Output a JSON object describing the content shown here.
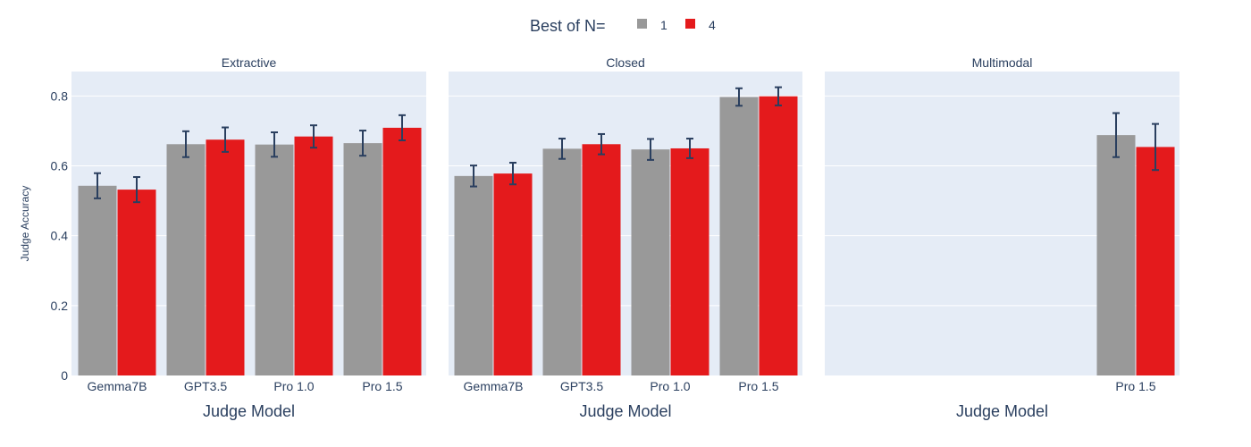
{
  "chart_data": {
    "type": "bar",
    "legend": {
      "title": "Best of N=",
      "placement": "top-center",
      "entries": [
        {
          "label": "1",
          "color": "#999999"
        },
        {
          "label": "4",
          "color": "#e41a1c"
        }
      ]
    },
    "ylabel": "Judge Accuracy",
    "ylim": [
      0,
      0.87
    ],
    "yticks": [
      {
        "value": 0,
        "label": "0"
      },
      {
        "value": 0.2,
        "label": "0.2"
      },
      {
        "value": 0.4,
        "label": "0.4"
      },
      {
        "value": 0.6,
        "label": "0.6"
      },
      {
        "value": 0.8,
        "label": "0.8"
      }
    ],
    "grid": true,
    "panel_background": "#e5ecf6",
    "errorbar_color": "#2a3f5f",
    "panels": [
      {
        "title": "Extractive",
        "xlabel": "Judge Model",
        "categories": [
          "Gemma7B",
          "GPT3.5",
          "Pro 1.0",
          "Pro 1.5"
        ],
        "series": [
          {
            "name": "1",
            "values": [
              0.543,
              0.662,
              0.661,
              0.665
            ],
            "err": [
              0.036,
              0.037,
              0.035,
              0.036
            ]
          },
          {
            "name": "4",
            "values": [
              0.532,
              0.675,
              0.684,
              0.709
            ],
            "err": [
              0.036,
              0.035,
              0.032,
              0.036
            ]
          }
        ]
      },
      {
        "title": "Closed",
        "xlabel": "Judge Model",
        "categories": [
          "Gemma7B",
          "GPT3.5",
          "Pro 1.0",
          "Pro 1.5"
        ],
        "series": [
          {
            "name": "1",
            "values": [
              0.571,
              0.649,
              0.647,
              0.797
            ],
            "err": [
              0.03,
              0.029,
              0.03,
              0.025
            ]
          },
          {
            "name": "4",
            "values": [
              0.578,
              0.662,
              0.65,
              0.799
            ],
            "err": [
              0.031,
              0.029,
              0.028,
              0.026
            ]
          }
        ]
      },
      {
        "title": "Multimodal",
        "xlabel": "Judge Model",
        "categories": [
          "Pro 1.5"
        ],
        "series": [
          {
            "name": "1",
            "values": [
              0.688
            ],
            "err": [
              0.063
            ]
          },
          {
            "name": "4",
            "values": [
              0.654
            ],
            "err": [
              0.066
            ]
          }
        ]
      }
    ]
  }
}
